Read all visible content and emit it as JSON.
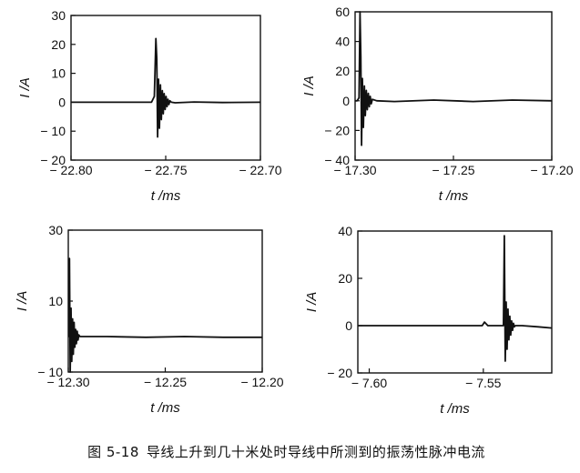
{
  "caption": {
    "number": "图 5-18",
    "text": "导线上升到几十米处时导线中所测到的振荡性脉冲电流"
  },
  "chart_data": [
    {
      "type": "line",
      "ylabel": "I /A",
      "xlabel": "t /ms",
      "xlim": [
        -22.8,
        -22.7
      ],
      "ylim": [
        -20,
        30
      ],
      "yticks": [
        -20,
        -10,
        0,
        10,
        20,
        30
      ],
      "ytick_labels": [
        "− 20",
        "− 10",
        "0",
        "10",
        "20",
        "30"
      ],
      "xticks": [
        -22.8,
        -22.75,
        -22.7
      ],
      "xtick_labels": [
        "− 22.80",
        "− 22.75",
        "− 22.70"
      ],
      "series": [
        {
          "x": [
            -22.8,
            -22.78,
            -22.765,
            -22.7575,
            -22.756,
            -22.7552,
            -22.7547,
            -22.7543,
            -22.7538,
            -22.7533,
            -22.7528,
            -22.7523,
            -22.7518,
            -22.7513,
            -22.7508,
            -22.7503,
            -22.7498,
            -22.7493,
            -22.7488,
            -22.7483,
            -22.7478,
            -22.747,
            -22.745,
            -22.735,
            -22.72,
            -22.7
          ],
          "y": [
            0,
            0,
            0,
            0,
            2,
            22,
            15,
            -12,
            8,
            -9,
            6,
            -6,
            4,
            -4,
            3,
            -2.5,
            2,
            -1.5,
            1,
            -0.8,
            0.5,
            0,
            -0.2,
            0.1,
            -0.1,
            0
          ]
        }
      ]
    },
    {
      "type": "line",
      "ylabel": "I /A",
      "xlabel": "t /ms",
      "xlim": [
        -17.3,
        -17.2
      ],
      "ylim": [
        -40,
        60
      ],
      "yticks": [
        -40,
        -20,
        0,
        20,
        40,
        60
      ],
      "ytick_labels": [
        "− 40",
        "− 20",
        "0",
        "20",
        "40",
        "60"
      ],
      "xticks": [
        -17.3,
        -17.25,
        -17.2
      ],
      "xtick_labels": [
        "− 17.30",
        "− 17.25",
        "− 17.20"
      ],
      "series": [
        {
          "x": [
            -17.305,
            -17.299,
            -17.298,
            -17.2975,
            -17.2971,
            -17.2967,
            -17.2963,
            -17.2958,
            -17.2953,
            -17.2948,
            -17.2943,
            -17.2938,
            -17.2933,
            -17.2928,
            -17.2923,
            -17.2918,
            -17.2912,
            -17.289,
            -17.28,
            -17.26,
            -17.24,
            -17.22,
            -17.2
          ],
          "y": [
            0,
            0,
            2,
            60,
            30,
            -30,
            15,
            -18,
            10,
            -10,
            7,
            -6,
            5,
            -4,
            3,
            -2,
            1,
            0,
            -0.5,
            0.5,
            -0.5,
            0.5,
            0
          ]
        }
      ]
    },
    {
      "type": "line",
      "ylabel": "I /A",
      "xlabel": "t /ms",
      "xlim": [
        -12.3,
        -12.2
      ],
      "ylim": [
        -10,
        30
      ],
      "yticks": [
        -10,
        10,
        30
      ],
      "ytick_labels": [
        "− 10",
        "10",
        "30"
      ],
      "xticks": [
        -12.3,
        -12.25,
        -12.2
      ],
      "xtick_labels": [
        "− 12.30",
        "− 12.25",
        "− 12.20"
      ],
      "series": [
        {
          "x": [
            -12.303,
            -12.301,
            -12.2998,
            -12.2994,
            -12.299,
            -12.2986,
            -12.2982,
            -12.2978,
            -12.2974,
            -12.297,
            -12.2966,
            -12.2962,
            -12.2958,
            -12.2954,
            -12.295,
            -12.2946,
            -12.294,
            -12.29,
            -12.28,
            -12.26,
            -12.24,
            -12.22,
            -12.2
          ],
          "y": [
            0,
            0,
            0,
            22,
            -10,
            8,
            -7,
            5,
            -5,
            4,
            -3,
            2,
            -2,
            1.5,
            -1,
            0.5,
            0,
            0,
            0,
            -0.2,
            0,
            -0.2,
            -0.2
          ]
        }
      ]
    },
    {
      "type": "line",
      "ylabel": "I /A",
      "xlabel": "t /ms",
      "xlim": [
        -7.605,
        -7.52
      ],
      "ylim": [
        -20,
        40
      ],
      "yticks": [
        -20,
        0,
        20,
        40
      ],
      "ytick_labels": [
        "− 20",
        "0",
        "20",
        "40"
      ],
      "xticks": [
        -7.6,
        -7.55
      ],
      "xtick_labels": [
        "− 7.60",
        "− 7.55"
      ],
      "series": [
        {
          "x": [
            -7.605,
            -7.59,
            -7.575,
            -7.5505,
            -7.5495,
            -7.548,
            -7.545,
            -7.5412,
            -7.5408,
            -7.5404,
            -7.54,
            -7.5396,
            -7.5392,
            -7.5388,
            -7.5384,
            -7.538,
            -7.5376,
            -7.5372,
            -7.5368,
            -7.5364,
            -7.536,
            -7.533,
            -7.526,
            -7.52
          ],
          "y": [
            0,
            0,
            0,
            0,
            1.5,
            0,
            0,
            0,
            38,
            -15,
            10,
            -10,
            7,
            -6,
            4,
            -4,
            2,
            -2,
            1,
            -0.5,
            0,
            0,
            -0.5,
            -1
          ]
        }
      ]
    }
  ]
}
